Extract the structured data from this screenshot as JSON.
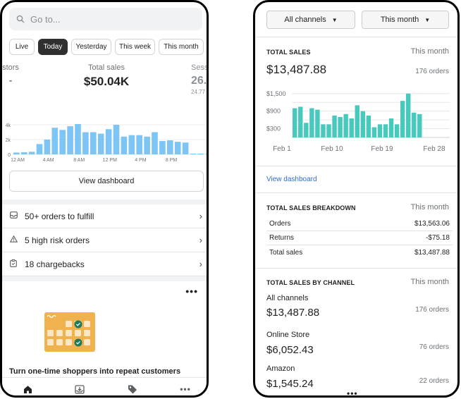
{
  "phone1": {
    "search_placeholder": "Go to...",
    "date_pills": [
      "Live",
      "Today",
      "Yesterday",
      "This week",
      "This month"
    ],
    "active_pill": "Today",
    "metrics": {
      "left_label": "stors",
      "left_value": "-",
      "center_label": "Total sales",
      "center_value": "$50.04K",
      "right_label": "Sess",
      "right_value": "26.",
      "right_sub": "24.77"
    },
    "chart_data": {
      "type": "bar",
      "yticks": [
        "4k",
        "2k",
        "0"
      ],
      "xticks": [
        "12 AM",
        "4 AM",
        "8 AM",
        "12 PM",
        "4 PM",
        "8 PM"
      ],
      "values": [
        0.25,
        0.3,
        0.35,
        1.4,
        2.0,
        3.6,
        3.3,
        3.8,
        4.1,
        3.0,
        3.0,
        2.8,
        3.4,
        4.0,
        2.4,
        2.6,
        2.6,
        2.4,
        3.0,
        1.8,
        1.9,
        1.7,
        1.6,
        0.1,
        0.1,
        0.1
      ]
    },
    "view_dashboard": "View dashboard",
    "tasks": [
      {
        "icon": "inbox-icon",
        "label": "50+ orders to fulfill"
      },
      {
        "icon": "warning-icon",
        "label": "5 high risk orders"
      },
      {
        "icon": "clipboard-icon",
        "label": "18 chargebacks"
      }
    ],
    "promo_more": "•••",
    "promo_title": "Turn one-time shoppers into repeat customers",
    "nav": [
      "home-icon",
      "inbox-icon",
      "tag-icon",
      "more-icon"
    ]
  },
  "phone2": {
    "channels_dropdown": "All channels",
    "period_dropdown": "This month",
    "total_sales": {
      "title": "TOTAL SALES",
      "period": "This month",
      "value": "$13,487.88",
      "orders": "176 orders"
    },
    "chart_data": {
      "type": "bar",
      "yticks": [
        "$1,500",
        "$900",
        "$300"
      ],
      "xticks": [
        "Feb 1",
        "Feb 10",
        "Feb 19",
        "Feb 28"
      ],
      "values": [
        1000,
        1050,
        500,
        1000,
        950,
        450,
        450,
        750,
        700,
        800,
        650,
        1100,
        900,
        750,
        350,
        450,
        450,
        650,
        450,
        1250,
        1500,
        850,
        800,
        0,
        0,
        0,
        0,
        0
      ]
    },
    "view_dashboard": "View dashboard",
    "breakdown": {
      "title": "TOTAL SALES BREAKDOWN",
      "period": "This month",
      "rows": [
        {
          "label": "Orders",
          "value": "$13,563.06"
        },
        {
          "label": "Returns",
          "value": "-$75.18"
        },
        {
          "label": "Total sales",
          "value": "$13,487.88"
        }
      ]
    },
    "by_channel": {
      "title": "TOTAL SALES BY CHANNEL",
      "period": "This month",
      "channels": [
        {
          "name": "All channels",
          "value": "$13,487.88",
          "orders": "176 orders"
        },
        {
          "name": "Online Store",
          "value": "$6,052.43",
          "orders": "76 orders"
        },
        {
          "name": "Amazon",
          "value": "$1,545.24",
          "orders": "22 orders"
        }
      ]
    },
    "more": "•••"
  },
  "colors": {
    "bar_blue": "#7cc5f5",
    "bar_teal": "#47c9bd",
    "link": "#2c6ecb",
    "active_pill": "#303030"
  }
}
